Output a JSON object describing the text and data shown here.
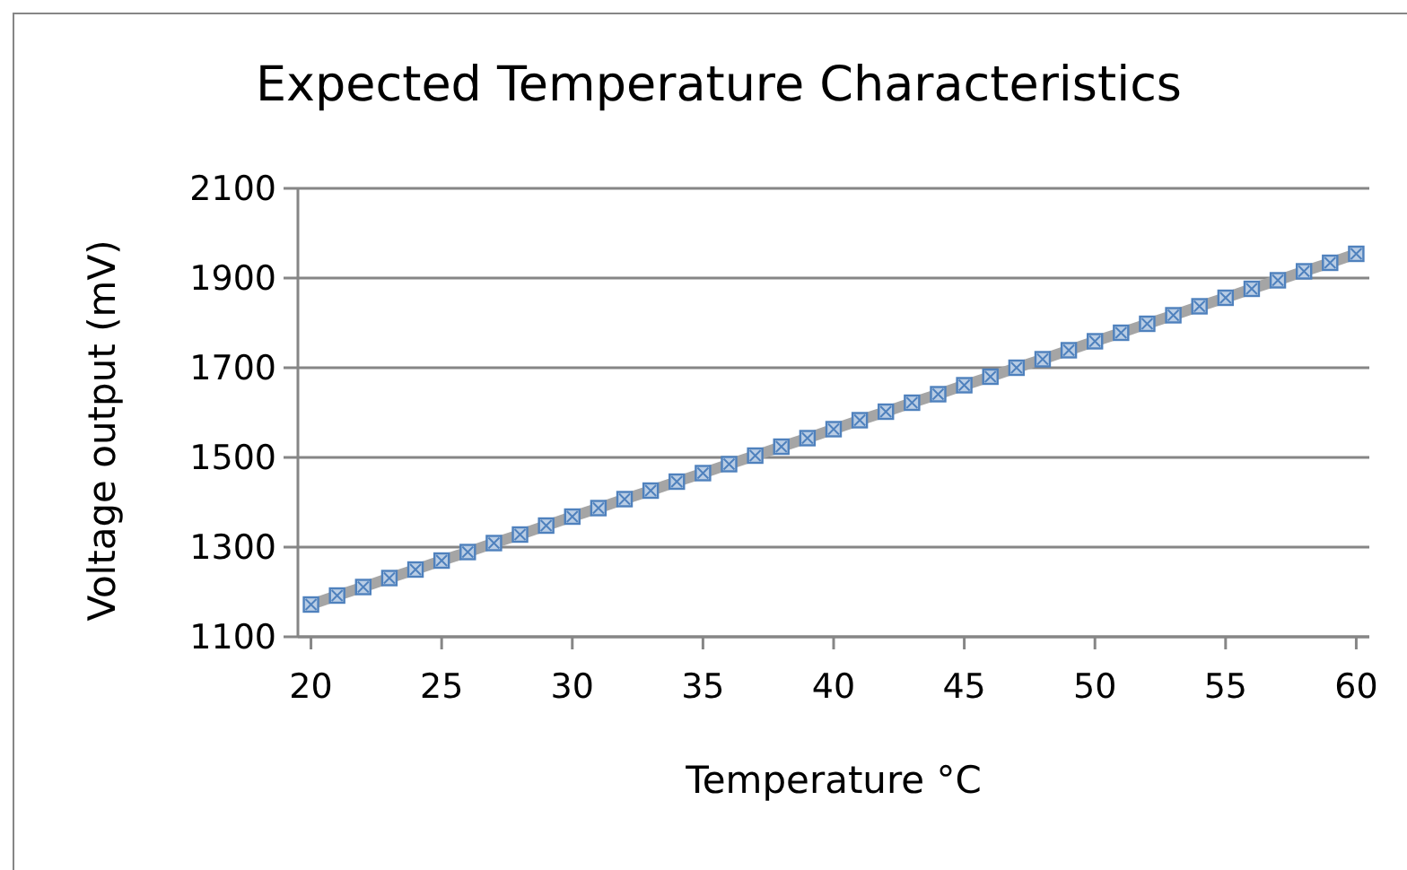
{
  "chart_data": {
    "type": "line",
    "title": "Expected Temperature Characteristics",
    "xlabel": "Temperature °C",
    "ylabel": "Voltage output (mV)",
    "x": [
      20,
      21,
      22,
      23,
      24,
      25,
      26,
      27,
      28,
      29,
      30,
      31,
      32,
      33,
      34,
      35,
      36,
      37,
      38,
      39,
      40,
      41,
      42,
      43,
      44,
      45,
      46,
      47,
      48,
      49,
      50,
      51,
      52,
      53,
      54,
      55,
      56,
      57,
      58,
      59,
      60
    ],
    "series": [
      {
        "color": "#a5a5a5",
        "values": [
          1172,
          1192,
          1211,
          1231,
          1250,
          1270,
          1289,
          1309,
          1328,
          1348,
          1368,
          1387,
          1407,
          1426,
          1446,
          1465,
          1485,
          1504,
          1524,
          1543,
          1563,
          1583,
          1602,
          1622,
          1641,
          1661,
          1680,
          1700,
          1719,
          1739,
          1759,
          1778,
          1798,
          1817,
          1837,
          1856,
          1876,
          1895,
          1915,
          1934,
          1954
        ]
      }
    ],
    "marker": "square",
    "line_style": "solid",
    "xlim": [
      19.5,
      60.5
    ],
    "xticks": [
      20,
      25,
      30,
      35,
      40,
      45,
      50,
      55,
      60
    ],
    "ylim": [
      1100,
      2100
    ],
    "yticks": [
      1100,
      1300,
      1500,
      1700,
      1900,
      2100
    ],
    "grid": "y"
  }
}
